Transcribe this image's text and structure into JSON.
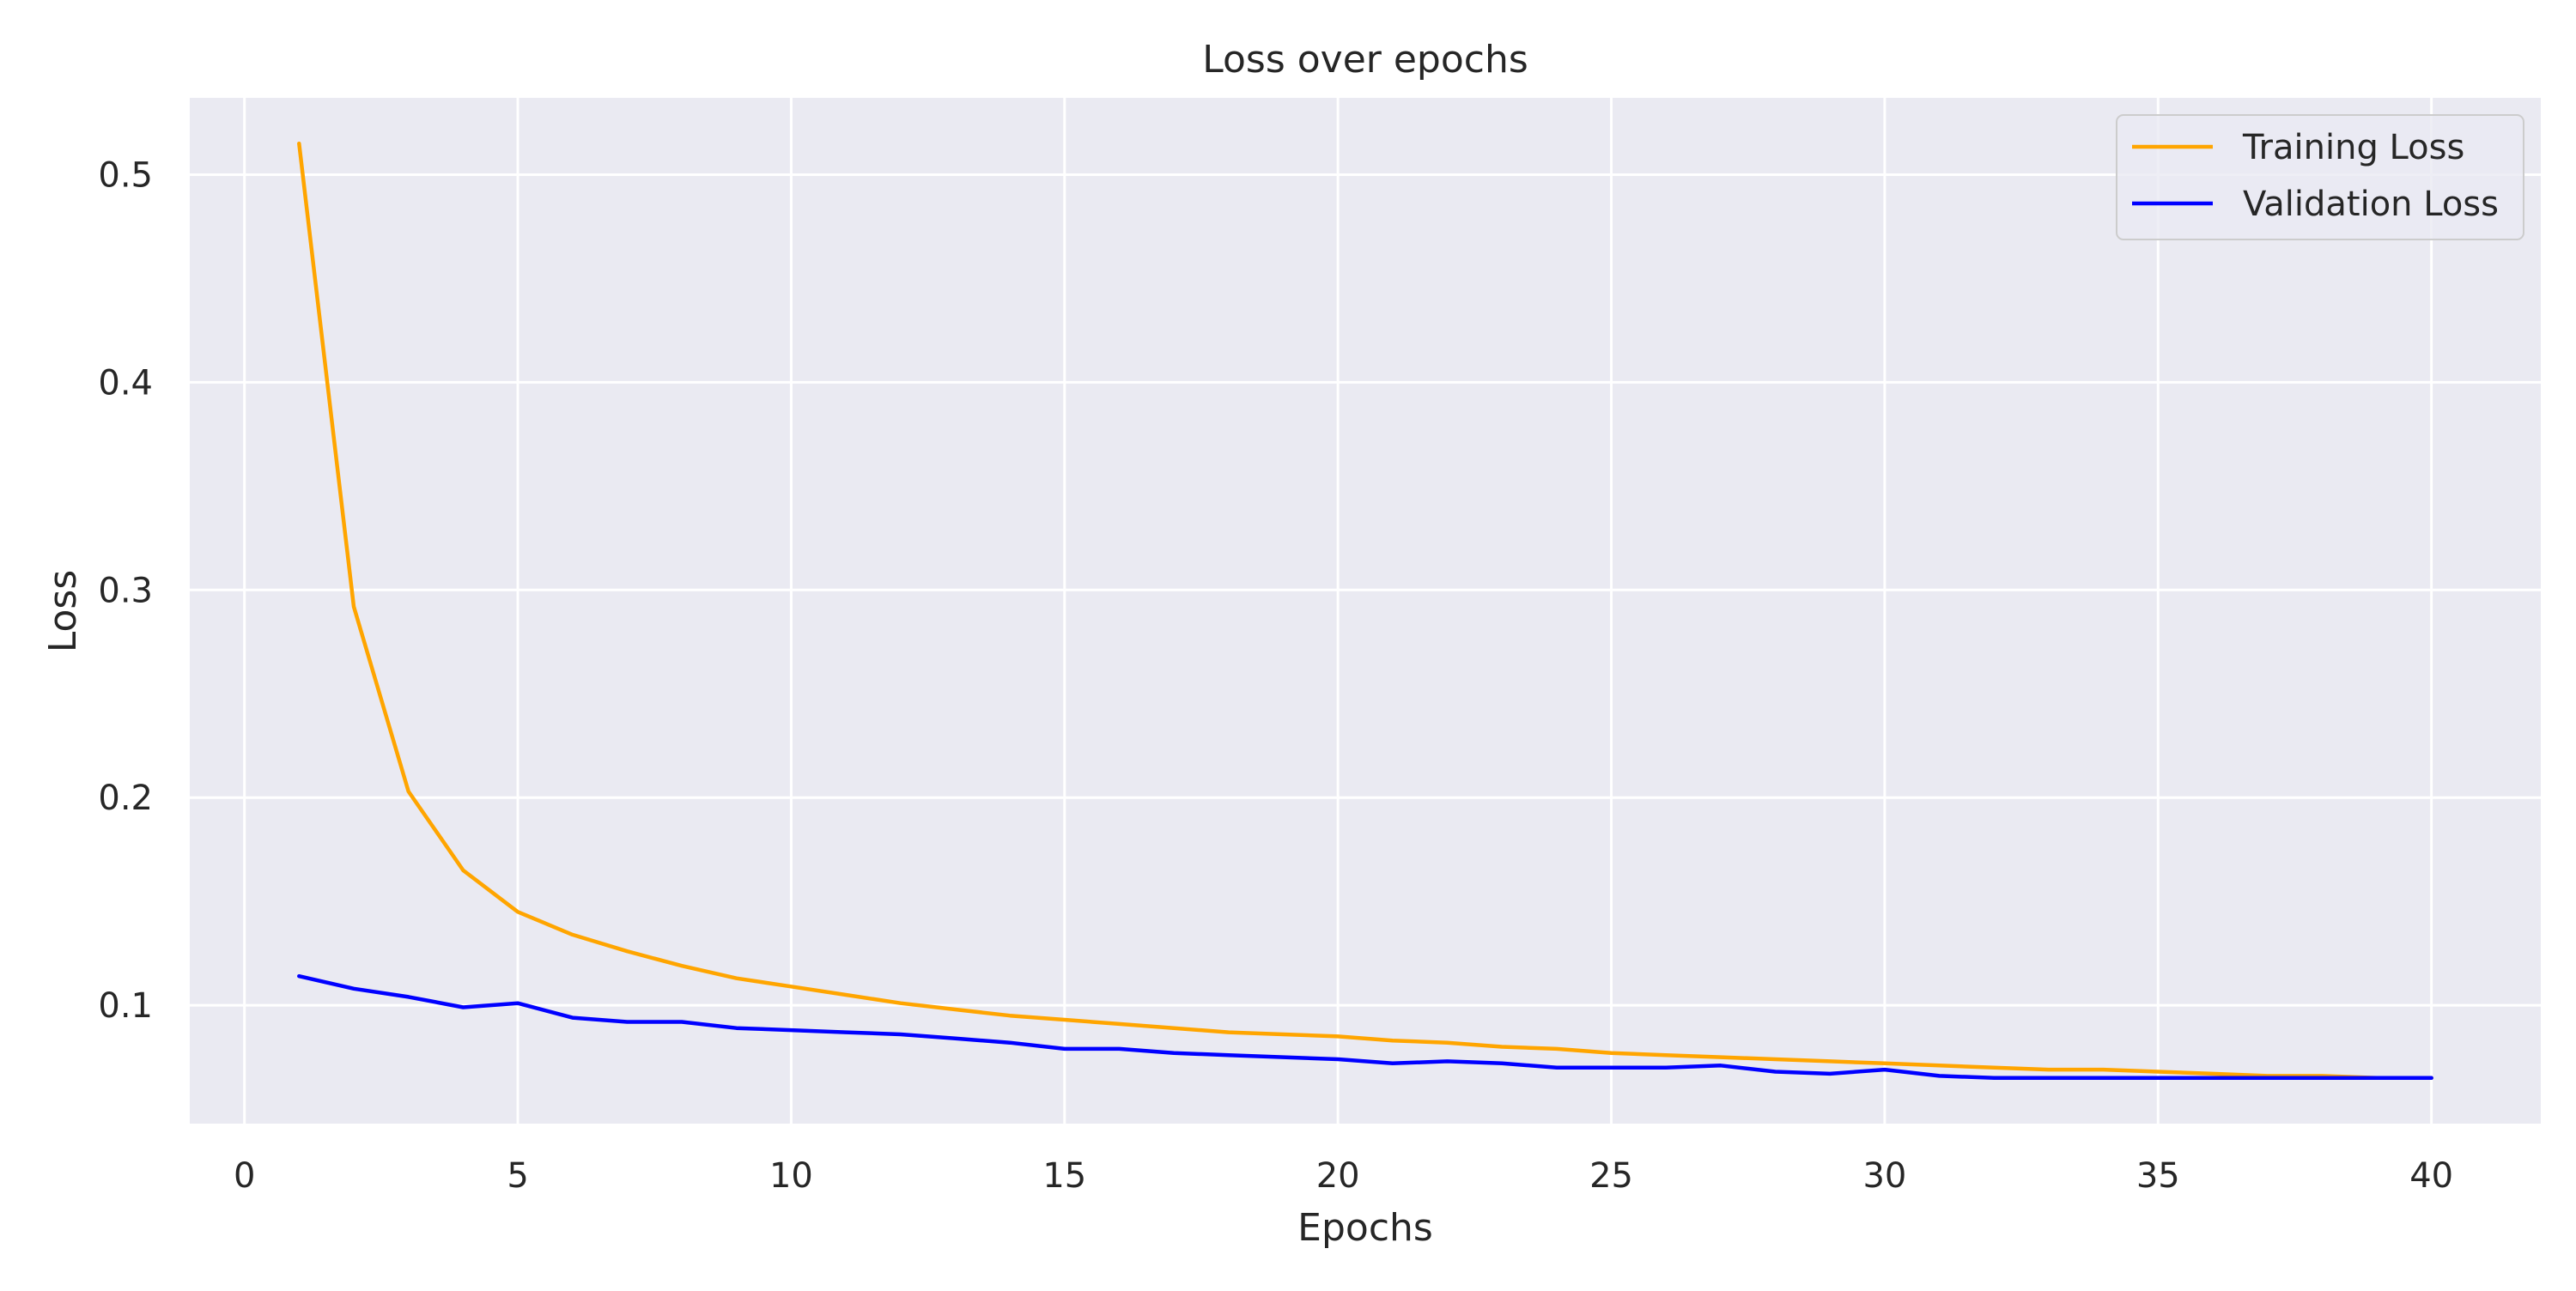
{
  "chart_data": {
    "type": "line",
    "title": "Loss over epochs",
    "xlabel": "Epochs",
    "ylabel": "Loss",
    "xlim": [
      -1,
      42
    ],
    "ylim": [
      0.043,
      0.537
    ],
    "xticks": [
      0,
      5,
      10,
      15,
      20,
      25,
      30,
      35,
      40
    ],
    "xtick_labels": [
      "0",
      "5",
      "10",
      "15",
      "20",
      "25",
      "30",
      "35",
      "40"
    ],
    "yticks": [
      0.1,
      0.2,
      0.3,
      0.4,
      0.5
    ],
    "ytick_labels": [
      "0.1",
      "0.2",
      "0.3",
      "0.4",
      "0.5"
    ],
    "grid": true,
    "legend_position": "top-right",
    "background": "#eaeaf2",
    "grid_color": "#ffffff",
    "x": [
      1,
      2,
      3,
      4,
      5,
      6,
      7,
      8,
      9,
      10,
      11,
      12,
      13,
      14,
      15,
      16,
      17,
      18,
      19,
      20,
      21,
      22,
      23,
      24,
      25,
      26,
      27,
      28,
      29,
      30,
      31,
      32,
      33,
      34,
      35,
      36,
      37,
      38,
      39,
      40
    ],
    "series": [
      {
        "name": "Training Loss",
        "color": "#ffa500",
        "values": [
          0.515,
          0.292,
          0.203,
          0.165,
          0.145,
          0.134,
          0.126,
          0.119,
          0.113,
          0.109,
          0.105,
          0.101,
          0.098,
          0.095,
          0.093,
          0.091,
          0.089,
          0.087,
          0.086,
          0.085,
          0.083,
          0.082,
          0.08,
          0.079,
          0.077,
          0.076,
          0.075,
          0.074,
          0.073,
          0.072,
          0.071,
          0.07,
          0.069,
          0.069,
          0.068,
          0.067,
          0.066,
          0.066,
          0.065,
          0.065
        ]
      },
      {
        "name": "Validation Loss",
        "color": "#0000ff",
        "values": [
          0.114,
          0.108,
          0.104,
          0.099,
          0.101,
          0.094,
          0.092,
          0.092,
          0.089,
          0.088,
          0.087,
          0.086,
          0.084,
          0.082,
          0.079,
          0.079,
          0.077,
          0.076,
          0.075,
          0.074,
          0.072,
          0.073,
          0.072,
          0.07,
          0.07,
          0.07,
          0.071,
          0.068,
          0.067,
          0.069,
          0.066,
          0.065,
          0.065,
          0.065,
          0.065,
          0.065,
          0.065,
          0.065,
          0.065,
          0.065
        ]
      }
    ]
  }
}
